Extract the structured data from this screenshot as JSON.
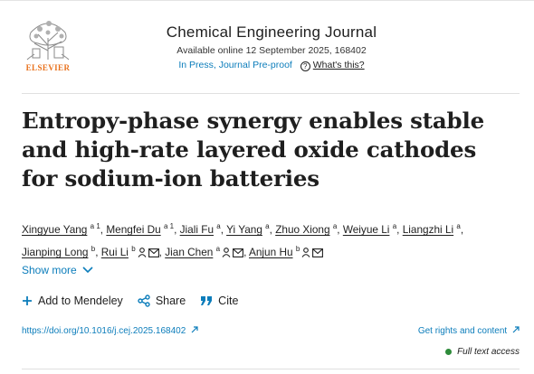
{
  "header": {
    "logo_text": "ELSEVIER",
    "journal_title": "Chemical Engineering Journal",
    "available": "Available online 12 September 2025, 168402",
    "status": "In Press, Journal Pre-proof",
    "whats_this": "What's this?"
  },
  "article": {
    "title": "Entropy-phase synergy enables stable and high-rate layered oxide cathodes for sodium-ion batteries",
    "authors": [
      {
        "name": "Xingyue Yang",
        "sup": "a 1",
        "icons": []
      },
      {
        "name": "Mengfei Du",
        "sup": "a 1",
        "icons": []
      },
      {
        "name": "Jiali Fu",
        "sup": "a",
        "icons": []
      },
      {
        "name": "Yi Yang",
        "sup": "a",
        "icons": []
      },
      {
        "name": "Zhuo Xiong",
        "sup": "a",
        "icons": []
      },
      {
        "name": "Weiyue Li",
        "sup": "a",
        "icons": []
      },
      {
        "name": "Liangzhi Li",
        "sup": "a",
        "icons": []
      },
      {
        "name": "Jianping Long",
        "sup": "b",
        "icons": []
      },
      {
        "name": "Rui Li",
        "sup": "b",
        "icons": [
          "person",
          "mail"
        ]
      },
      {
        "name": "Jian Chen",
        "sup": "a",
        "icons": [
          "person",
          "mail"
        ]
      },
      {
        "name": "Anjun Hu",
        "sup": "b",
        "icons": [
          "person",
          "mail"
        ]
      }
    ],
    "show_more": "Show more"
  },
  "actions": {
    "add_mendeley": "Add to Mendeley",
    "share": "Share",
    "cite": "Cite"
  },
  "links": {
    "doi": "https://doi.org/10.1016/j.cej.2025.168402",
    "rights": "Get rights and content",
    "access": "Full text access"
  },
  "colors": {
    "link": "#0c7dbb",
    "elsevier_orange": "#e9711c",
    "access_green": "#2e8b3a"
  }
}
